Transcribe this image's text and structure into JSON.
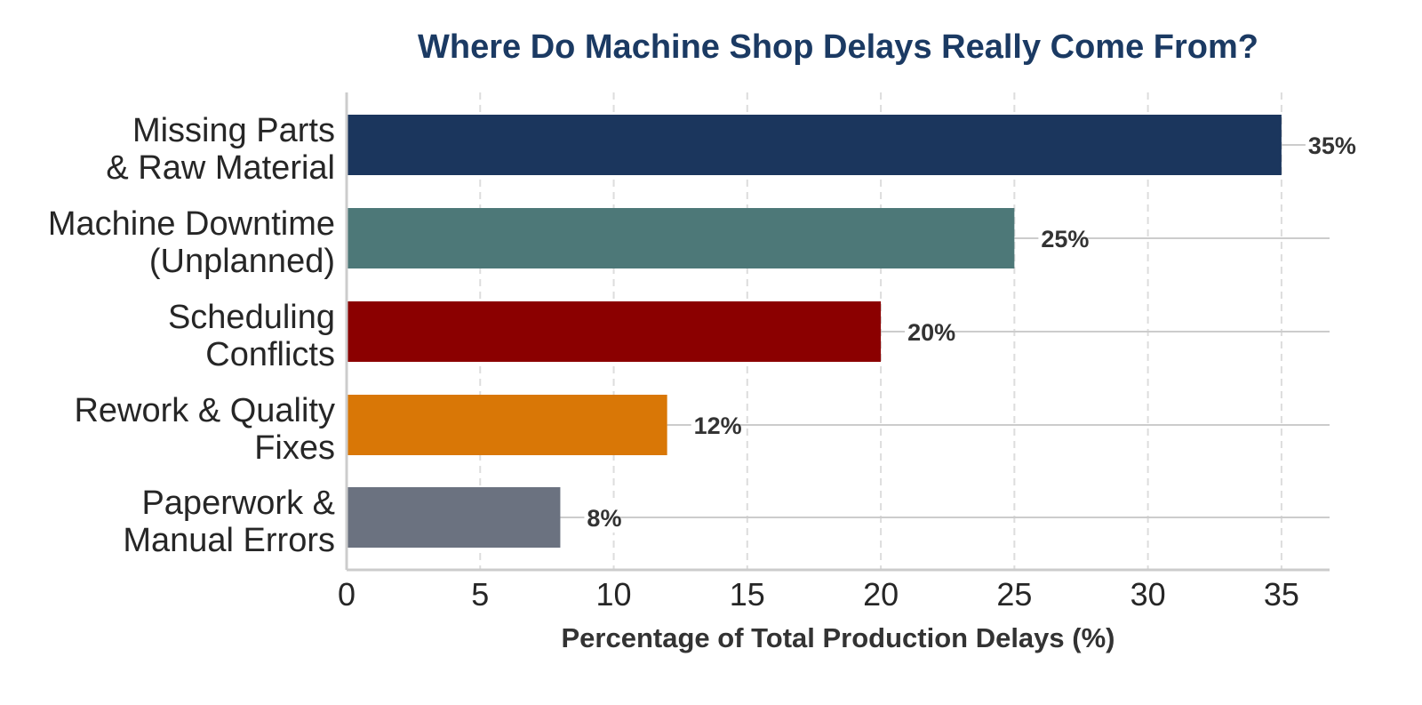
{
  "chart_data": {
    "type": "bar",
    "orientation": "horizontal",
    "title": "Where Do Machine Shop Delays Really Come From?",
    "xlabel": "Percentage of Total Production Delays (%)",
    "ylabel": "",
    "xlim": [
      0,
      36.8
    ],
    "xticks": [
      0,
      5,
      10,
      15,
      20,
      25,
      30,
      35
    ],
    "grid": "vertical dashed",
    "legend": "none",
    "categories": [
      [
        "Missing Parts",
        "& Raw Material"
      ],
      [
        "Machine Downtime",
        "(Unplanned)"
      ],
      [
        "Scheduling",
        "Conflicts"
      ],
      [
        "Rework & Quality",
        "Fixes"
      ],
      [
        "Paperwork &",
        "Manual Errors"
      ]
    ],
    "values": [
      35,
      25,
      20,
      12,
      8
    ],
    "data_labels": [
      "35%",
      "25%",
      "20%",
      "12%",
      "8%"
    ],
    "colors": [
      "#1b365d",
      "#4d7878",
      "#8b0000",
      "#d97706",
      "#6b7280"
    ],
    "title_color": "#1b3a63",
    "grid_color": "#dddddd",
    "leader_line_color": "#cccccc",
    "axis_color": "#cccccc"
  }
}
